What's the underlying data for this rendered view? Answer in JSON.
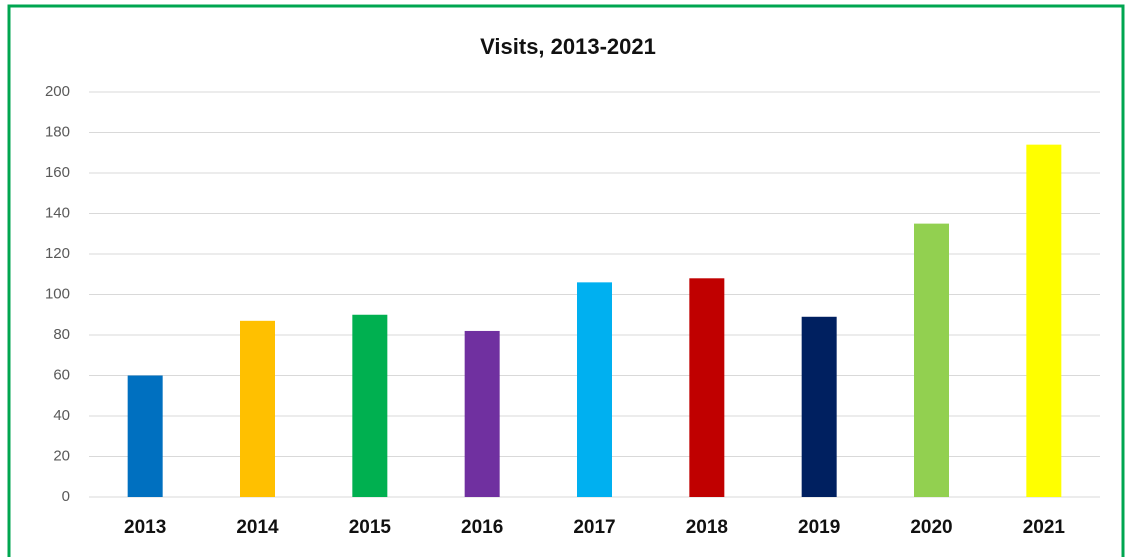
{
  "chart_data": {
    "type": "bar",
    "title": "Visits, 2013-2021",
    "categories": [
      "2013",
      "2014",
      "2015",
      "2016",
      "2017",
      "2018",
      "2019",
      "2020",
      "2021"
    ],
    "values": [
      60,
      87,
      90,
      82,
      106,
      108,
      89,
      135,
      174
    ],
    "colors": [
      "#0070c0",
      "#ffc000",
      "#00b050",
      "#7030a0",
      "#00b0f0",
      "#c00000",
      "#002060",
      "#92d050",
      "#ffff00"
    ],
    "ylim": [
      0,
      200
    ],
    "yticks": [
      0,
      20,
      40,
      60,
      80,
      100,
      120,
      140,
      160,
      180,
      200
    ],
    "grid": true
  }
}
